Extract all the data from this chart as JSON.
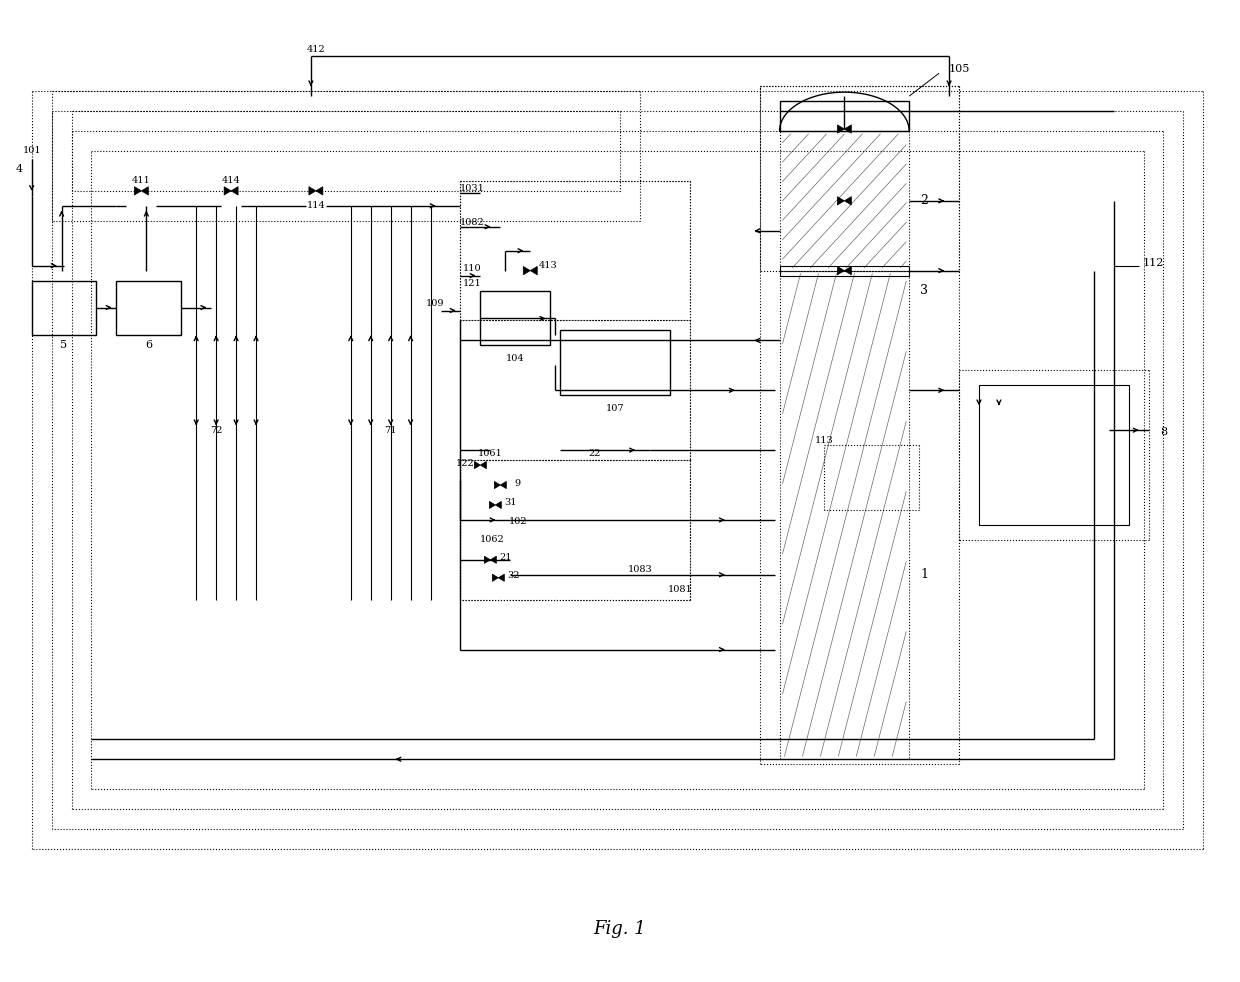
{
  "fig_width": 12.4,
  "fig_height": 9.82,
  "bg_color": "#ffffff",
  "title": "Fig. 1"
}
